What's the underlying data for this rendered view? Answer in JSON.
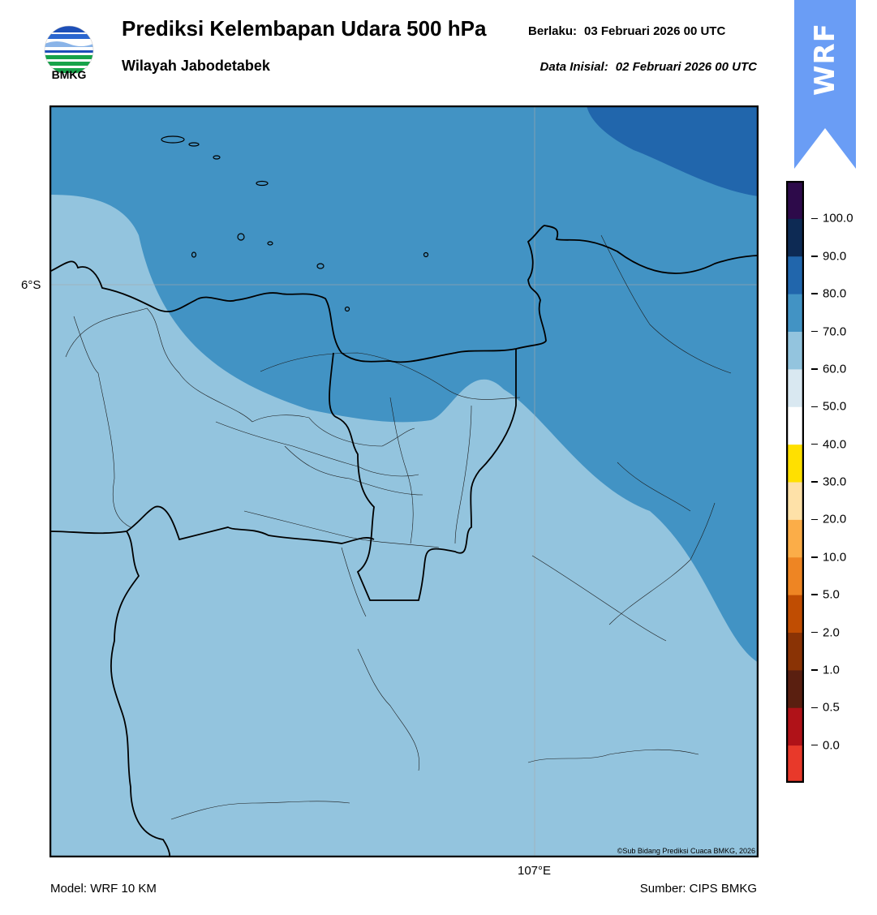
{
  "header": {
    "title": "Prediksi Kelembapan Udara 500 hPa",
    "subtitle": "Wilayah Jabodetabek",
    "valid_label": "Berlaku:",
    "valid_value": "03 Februari 2026 00 UTC",
    "init_label": "Data Inisial:",
    "init_value": "02 Februari 2026 00 UTC"
  },
  "logo": {
    "name": "bmkg-logo",
    "text": "BMKG"
  },
  "badge": {
    "text": "WRF",
    "color": "#6a9df5"
  },
  "map": {
    "lat_label": "6°S",
    "lon_label": "107°E",
    "copyright": "©Sub Bidang Prediksi Cuaca BMKG, 2026",
    "fill_colors": {
      "60-70": "#93c4de",
      "70-80": "#4293c4",
      "80-90": "#2166ac"
    }
  },
  "colorbar": {
    "labels": [
      "0.0",
      "0.5",
      "1.0",
      "2.0",
      "5.0",
      "10.0",
      "20.0",
      "30.0",
      "40.0",
      "50.0",
      "60.0",
      "70.0",
      "80.0",
      "90.0",
      "100.0"
    ],
    "colors": [
      "#e8392a",
      "#b01218",
      "#5a1f10",
      "#8a3305",
      "#c04d02",
      "#ee8523",
      "#fbad48",
      "#fee1a8",
      "#ffe000",
      "#ffffff",
      "#d9e8f1",
      "#93c4de",
      "#4293c4",
      "#2166ac",
      "#0d2a54",
      "#2d0a4a"
    ]
  },
  "footer": {
    "model": "Model: WRF 10 KM",
    "source": "Sumber: CIPS BMKG"
  }
}
